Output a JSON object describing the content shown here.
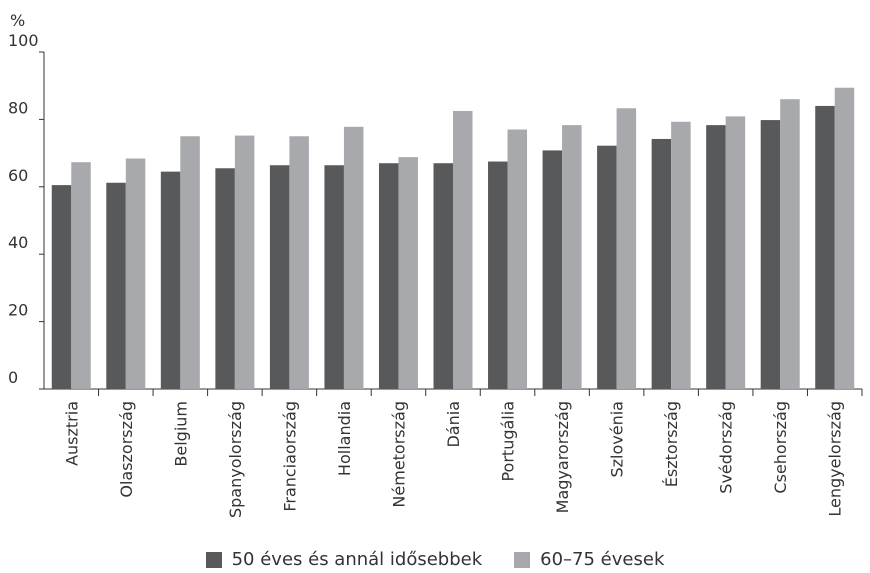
{
  "chart_data": {
    "type": "bar",
    "ylabel": "%",
    "ylim": [
      0,
      100
    ],
    "yticks": [
      0,
      20,
      40,
      60,
      80,
      100
    ],
    "categories": [
      "Ausztria",
      "Olaszország",
      "Belgium",
      "Spanyolország",
      "Franciaország",
      "Hollandia",
      "Németország",
      "Dánia",
      "Portugália",
      "Magyarország",
      "Szlovénia",
      "Észtország",
      "Svédország",
      "Csehország",
      "Lengyelország"
    ],
    "series": [
      {
        "name": "50 éves és annál idősebbek",
        "color": "#58595b",
        "values": [
          60.5,
          61.2,
          64.5,
          65.5,
          66.4,
          66.4,
          67.0,
          67.0,
          67.5,
          70.8,
          72.2,
          74.2,
          78.3,
          79.8,
          84.0
        ]
      },
      {
        "name": "60–75 évesek",
        "color": "#a7a9ac",
        "values": [
          67.3,
          68.4,
          75.0,
          75.2,
          75.0,
          77.8,
          68.8,
          82.5,
          77.0,
          78.3,
          83.3,
          79.3,
          80.9,
          86.0,
          89.4
        ]
      }
    ],
    "grid": false,
    "legend_position": "bottom-center"
  }
}
